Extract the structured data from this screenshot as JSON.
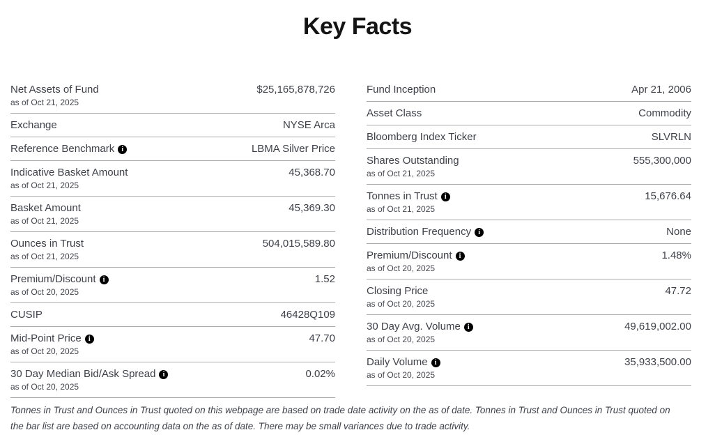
{
  "page": {
    "title": "Key Facts",
    "footnote": "Tonnes in Trust and Ounces in Trust quoted on this webpage are based on trade date activity on the as of date. Tonnes in Trust and Ounces in Trust quoted on the bar list are based on accounting data on the as of date. There may be small variances due to trade activity."
  },
  "icons": {
    "info_glyph": "i"
  },
  "colors": {
    "text": "#3f4149",
    "title": "#141414",
    "divider": "#ababab",
    "info_icon_bg": "#000000",
    "info_icon_fg": "#ffffff",
    "background": "#ffffff"
  },
  "columns": {
    "left": [
      {
        "label": "Net Assets of Fund",
        "as_of": "as of Oct 21, 2025",
        "value": "$25,165,878,726",
        "info": false
      },
      {
        "label": "Exchange",
        "as_of": "",
        "value": "NYSE Arca",
        "info": false
      },
      {
        "label": "Reference Benchmark",
        "as_of": "",
        "value": "LBMA Silver Price",
        "info": true
      },
      {
        "label": "Indicative Basket Amount",
        "as_of": "as of Oct 21, 2025",
        "value": "45,368.70",
        "info": false
      },
      {
        "label": "Basket Amount",
        "as_of": "as of Oct 21, 2025",
        "value": "45,369.30",
        "info": false
      },
      {
        "label": "Ounces in Trust",
        "as_of": "as of Oct 21, 2025",
        "value": "504,015,589.80",
        "info": false
      },
      {
        "label": "Premium/Discount",
        "as_of": "as of Oct 20, 2025",
        "value": "1.52",
        "info": true
      },
      {
        "label": "CUSIP",
        "as_of": "",
        "value": "46428Q109",
        "info": false
      },
      {
        "label": "Mid-Point Price",
        "as_of": "as of Oct 20, 2025",
        "value": "47.70",
        "info": true
      },
      {
        "label": "30 Day Median Bid/Ask Spread",
        "as_of": "as of Oct 20, 2025",
        "value": "0.02%",
        "info": true
      }
    ],
    "right": [
      {
        "label": "Fund Inception",
        "as_of": "",
        "value": "Apr 21, 2006",
        "info": false
      },
      {
        "label": "Asset Class",
        "as_of": "",
        "value": "Commodity",
        "info": false
      },
      {
        "label": "Bloomberg Index Ticker",
        "as_of": "",
        "value": "SLVRLN",
        "info": false
      },
      {
        "label": "Shares Outstanding",
        "as_of": "as of Oct 21, 2025",
        "value": "555,300,000",
        "info": false
      },
      {
        "label": "Tonnes in Trust",
        "as_of": "as of Oct 21, 2025",
        "value": "15,676.64",
        "info": true
      },
      {
        "label": "Distribution Frequency",
        "as_of": "",
        "value": "None",
        "info": true
      },
      {
        "label": "Premium/Discount",
        "as_of": "as of Oct 20, 2025",
        "value": "1.48%",
        "info": true
      },
      {
        "label": "Closing Price",
        "as_of": "as of Oct 20, 2025",
        "value": "47.72",
        "info": false
      },
      {
        "label": "30 Day Avg. Volume",
        "as_of": "as of Oct 20, 2025",
        "value": "49,619,002.00",
        "info": true
      },
      {
        "label": "Daily Volume",
        "as_of": "as of Oct 20, 2025",
        "value": "35,933,500.00",
        "info": true
      }
    ]
  }
}
